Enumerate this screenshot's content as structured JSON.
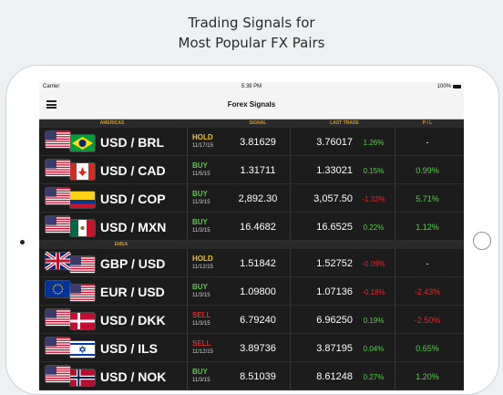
{
  "headline": {
    "line1": "Trading Signals for",
    "line2": "Most Popular FX Pairs"
  },
  "status_bar": {
    "carrier": "Carrier",
    "time": "5:39 PM",
    "battery": "100%"
  },
  "nav": {
    "title": "Forex Signals",
    "menu_icon": "hamburger-menu-icon"
  },
  "columns": {
    "region": "AMERICAS",
    "signal": "SIGNAL",
    "last_trade": "LAST TRADE",
    "pl": "P / L"
  },
  "sections": [
    {
      "label": "EMEA"
    }
  ],
  "rows": [
    {
      "pair": "USD / BRL",
      "action": "HOLD",
      "date": "11/17/15",
      "signal": "3.81629",
      "last": "3.76017",
      "change": "1.26%",
      "pl": "-",
      "flags": [
        "us",
        "br"
      ]
    },
    {
      "pair": "USD / CAD",
      "action": "BUY",
      "date": "11/5/15",
      "signal": "1.31711",
      "last": "1.33021",
      "change": "0.15%",
      "pl": "0.99%",
      "flags": [
        "us",
        "ca"
      ]
    },
    {
      "pair": "USD / COP",
      "action": "BUY",
      "date": "11/3/15",
      "signal": "2,892.30",
      "last": "3,057.50",
      "change": "-1.32%",
      "pl": "5.71%",
      "flags": [
        "us",
        "co"
      ]
    },
    {
      "pair": "USD / MXN",
      "action": "BUY",
      "date": "11/3/15",
      "signal": "16.4682",
      "last": "16.6525",
      "change": "0.22%",
      "pl": "1.12%",
      "flags": [
        "us",
        "mx"
      ]
    },
    {
      "pair": "GBP / USD",
      "action": "HOLD",
      "date": "11/12/15",
      "signal": "1.51842",
      "last": "1.52752",
      "change": "-0.09%",
      "pl": "-",
      "flags": [
        "gb",
        "us"
      ]
    },
    {
      "pair": "EUR / USD",
      "action": "BUY",
      "date": "11/3/15",
      "signal": "1.09800",
      "last": "1.07136",
      "change": "-0.18%",
      "pl": "-2.43%",
      "flags": [
        "eu",
        "us"
      ]
    },
    {
      "pair": "USD / DKK",
      "action": "SELL",
      "date": "11/3/15",
      "signal": "6.79240",
      "last": "6.96250",
      "change": "0.19%",
      "pl": "-2.50%",
      "flags": [
        "us",
        "dk"
      ]
    },
    {
      "pair": "USD / ILS",
      "action": "SELL",
      "date": "11/12/15",
      "signal": "3.89736",
      "last": "3.87195",
      "change": "0.04%",
      "pl": "0.65%",
      "flags": [
        "us",
        "il"
      ]
    },
    {
      "pair": "USD / NOK",
      "action": "BUY",
      "date": "11/3/15",
      "signal": "8.51039",
      "last": "8.61248",
      "change": "0.27%",
      "pl": "1.20%",
      "flags": [
        "us",
        "no"
      ]
    }
  ],
  "colors": {
    "hold": "#f2c21d",
    "buy": "#53c83e",
    "sell": "#e02a2a",
    "positive": "#55d14a",
    "negative": "#e02a2a",
    "header_accent": "#d39b2e"
  }
}
